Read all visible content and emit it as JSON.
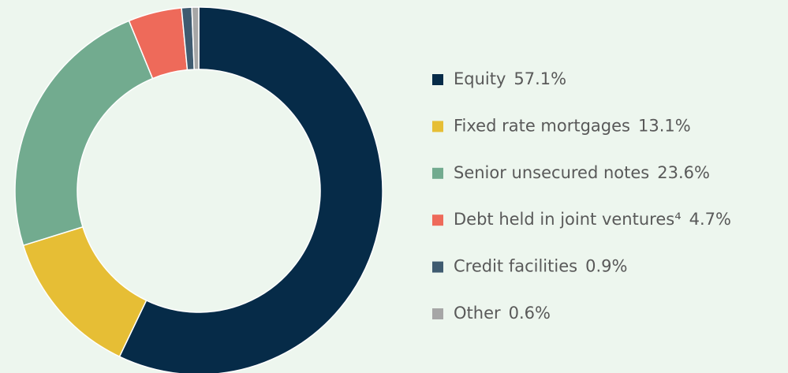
{
  "chart_data": {
    "type": "donut",
    "categories": [
      "Equity",
      "Fixed rate mortgages",
      "Senior unsecured notes",
      "Debt held in joint ventures⁴",
      "Credit facilities",
      "Other"
    ],
    "values": [
      57.1,
      13.1,
      23.6,
      4.7,
      0.9,
      0.6
    ],
    "value_labels": [
      "57.1%",
      "13.1%",
      "23.6%",
      "4.7%",
      "0.9%",
      "0.6%"
    ],
    "colors": [
      "#062b48",
      "#e6be35",
      "#72ab8f",
      "#ee6a5a",
      "#3f5b70",
      "#a6a6a6"
    ],
    "legend": "right"
  }
}
